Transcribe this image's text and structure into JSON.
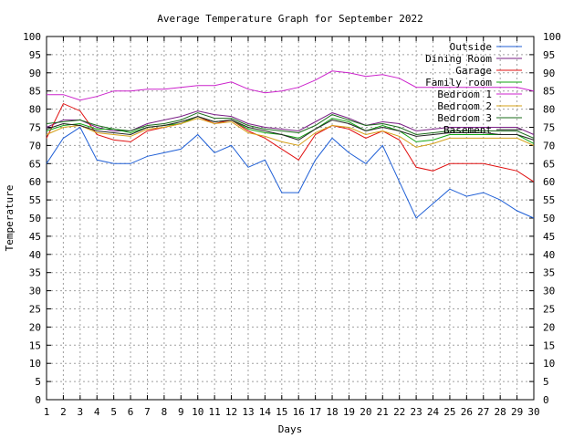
{
  "chart_data": {
    "type": "line",
    "title": "Average Temperature Graph for September 2022",
    "xlabel": "Days",
    "ylabel": "Temperature",
    "xlim": [
      1,
      30
    ],
    "ylim": [
      0,
      100
    ],
    "x_ticks": [
      1,
      2,
      3,
      4,
      5,
      6,
      7,
      8,
      9,
      10,
      11,
      12,
      13,
      14,
      15,
      16,
      17,
      18,
      19,
      20,
      21,
      22,
      23,
      24,
      25,
      26,
      27,
      28,
      29,
      30
    ],
    "y_ticks": [
      0,
      5,
      10,
      15,
      20,
      25,
      30,
      35,
      40,
      45,
      50,
      55,
      60,
      65,
      70,
      75,
      80,
      85,
      90,
      95,
      100
    ],
    "grid": true,
    "legend_position": "top-right",
    "x": [
      1,
      2,
      3,
      4,
      5,
      6,
      7,
      8,
      9,
      10,
      11,
      12,
      13,
      14,
      15,
      16,
      17,
      18,
      19,
      20,
      21,
      22,
      23,
      24,
      25,
      26,
      27,
      28,
      29,
      30
    ],
    "series": [
      {
        "name": "Outside",
        "color": "#1f5fd6",
        "values": [
          65,
          72,
          75,
          66,
          65,
          65,
          67,
          68,
          69,
          73,
          68,
          70,
          64,
          66,
          57,
          57,
          66,
          72,
          68,
          65,
          70,
          60,
          50,
          54,
          58,
          56,
          57,
          55,
          52,
          50
        ]
      },
      {
        "name": "Dining Room",
        "color": "#7a1f86",
        "values": [
          75,
          77,
          77,
          75,
          74,
          74,
          76,
          77,
          78,
          79.5,
          78.5,
          78,
          76,
          75,
          74.5,
          74,
          76.5,
          79,
          77.5,
          75.5,
          76.5,
          76,
          74,
          74.5,
          75,
          75,
          75,
          75,
          75,
          73
        ]
      },
      {
        "name": "Garage",
        "color": "#e01010",
        "values": [
          72,
          81.5,
          79.5,
          73,
          71.5,
          71,
          74,
          75,
          76,
          78,
          76,
          77,
          74,
          72,
          69,
          66,
          73,
          75.5,
          74.5,
          72,
          74,
          71.5,
          64,
          63,
          65,
          65,
          65,
          64,
          63,
          60
        ]
      },
      {
        "name": "Family room",
        "color": "#13a513",
        "values": [
          74,
          75.5,
          76,
          74.5,
          74.5,
          73.5,
          75,
          75.5,
          76,
          78,
          76.5,
          77,
          74.5,
          73.5,
          73,
          72,
          74.5,
          77.5,
          76.5,
          74,
          75.5,
          74,
          71,
          71.5,
          73,
          73,
          73,
          73,
          73,
          70.5
        ]
      },
      {
        "name": "Bedroom 1",
        "color": "#cc22cc",
        "values": [
          84,
          84,
          82.5,
          83.5,
          85,
          85,
          85.5,
          85.5,
          86,
          86.5,
          86.5,
          87.5,
          85.5,
          84.5,
          85,
          86,
          88,
          90.5,
          90,
          89,
          89.5,
          88.5,
          86,
          86,
          86,
          86,
          86,
          86,
          86,
          85
        ]
      },
      {
        "name": "Bedroom 2",
        "color": "#d4a017",
        "values": [
          73,
          75,
          75.5,
          73.5,
          73,
          72.5,
          74.5,
          75,
          76,
          77.5,
          76,
          76.5,
          73.5,
          72.5,
          71,
          70,
          73.5,
          75.5,
          75,
          73,
          74,
          72.5,
          69.5,
          70.5,
          72,
          72,
          72,
          72,
          72,
          70
        ]
      },
      {
        "name": "Bedroom 3",
        "color": "#1a6b1a",
        "values": [
          76,
          76.5,
          77,
          75.5,
          74.5,
          74,
          75.5,
          76,
          77,
          79,
          77.5,
          77.5,
          75.5,
          74.5,
          74,
          73.5,
          75.5,
          78.5,
          77,
          75.5,
          76,
          75,
          73,
          73.5,
          74,
          74,
          74,
          74,
          74,
          72
        ]
      },
      {
        "name": "Basement",
        "color": "#222222",
        "values": [
          74.5,
          76,
          75.5,
          74,
          73.5,
          73,
          75,
          75.5,
          76.5,
          78,
          76.5,
          77,
          75,
          74,
          73,
          71.5,
          74.5,
          77,
          76,
          74,
          75,
          74,
          72.5,
          73,
          73.5,
          73.5,
          73.5,
          73,
          73,
          71.5
        ]
      }
    ]
  }
}
